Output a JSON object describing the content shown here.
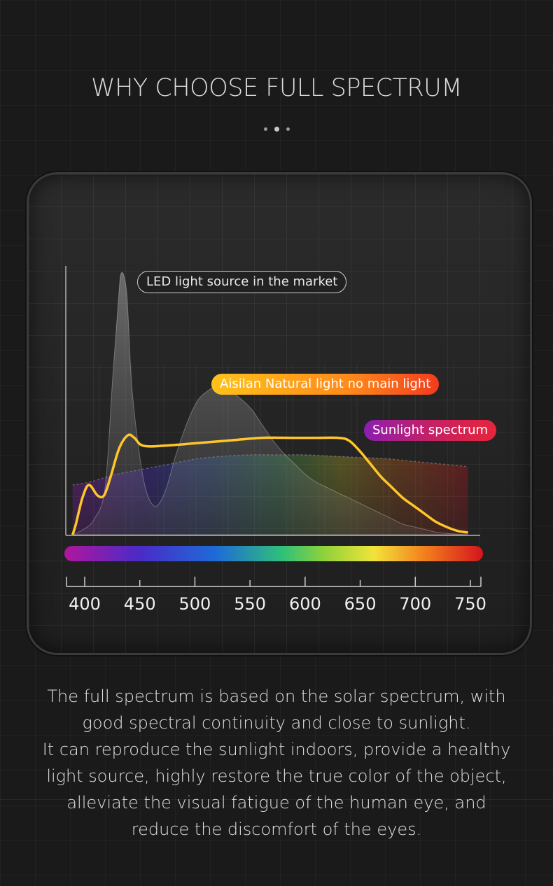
{
  "title": "WHY CHOOSE FULL SPECTRUM",
  "chart_data": {
    "type": "line",
    "xlim": [
      380,
      760
    ],
    "x_ticks": [
      400,
      450,
      500,
      550,
      600,
      650,
      700,
      750
    ],
    "series": [
      {
        "name": "LED light source in the market",
        "color": "#bdbdbd",
        "x": [
          385,
          395,
          405,
          415,
          422,
          427,
          430,
          435,
          440,
          450,
          460,
          470,
          480,
          490,
          500,
          510,
          520,
          530,
          540,
          550,
          560,
          570,
          580,
          590,
          600,
          610,
          620,
          630,
          640,
          650,
          660,
          670,
          680,
          690,
          700,
          710,
          720,
          730,
          740,
          750
        ],
        "y": [
          0,
          2,
          6,
          18,
          60,
          88,
          100,
          92,
          55,
          22,
          11,
          16,
          30,
          42,
          51,
          55,
          57,
          55,
          52,
          48,
          42,
          36,
          31,
          27,
          23,
          20,
          18,
          16,
          14,
          12,
          10,
          8,
          6,
          4,
          3,
          2,
          1,
          0.5,
          0.2,
          0
        ]
      },
      {
        "name": "Aisilan Natural light no main light",
        "color": "#ffc629",
        "x": [
          385,
          388,
          394,
          400,
          408,
          414,
          420,
          428,
          436,
          442,
          450,
          470,
          500,
          530,
          560,
          590,
          610,
          630,
          640,
          650,
          660,
          670,
          680,
          690,
          700,
          710,
          720,
          730,
          740,
          750
        ],
        "y": [
          0,
          4,
          14,
          19,
          15,
          15,
          22,
          33,
          38,
          37,
          34,
          34,
          35,
          36,
          37,
          37,
          37,
          37,
          36,
          32,
          27,
          22,
          18,
          14,
          11,
          8,
          5,
          3,
          1.5,
          0.8
        ]
      },
      {
        "name": "Sunlight spectrum",
        "color": "#ffffff",
        "x": [
          385,
          400,
          425,
          450,
          475,
          500,
          525,
          550,
          575,
          600,
          625,
          650,
          675,
          700,
          725,
          750
        ],
        "y": [
          19,
          20,
          23,
          25,
          27,
          29,
          30,
          30.5,
          30.5,
          30.5,
          30,
          29.5,
          29,
          28,
          27,
          26
        ]
      }
    ]
  }
}
